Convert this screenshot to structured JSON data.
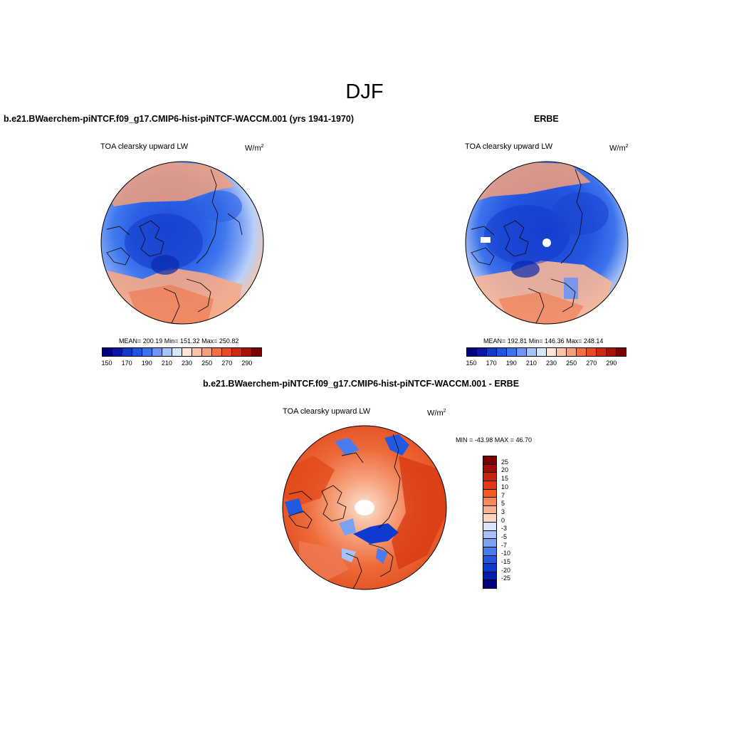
{
  "figure": {
    "title": "DJF"
  },
  "panels": [
    {
      "title": "b.e21.BWaerchem-piNTCF.f09_g17.CMIP6-hist-piNTCF-WACCM.001 (yrs 1941-1970)",
      "variable": "TOA clearsky upward LW",
      "units_base": "W/m",
      "units_sup": "2",
      "stats": "MEAN= 200.19  Min= 151.32  Max= 250.82"
    },
    {
      "title": "ERBE",
      "variable": "TOA clearsky upward LW",
      "units_base": "W/m",
      "units_sup": "2",
      "stats": "MEAN= 192.81  Min= 146.36  Max= 248.14"
    },
    {
      "title": "b.e21.BWaerchem-piNTCF.f09_g17.CMIP6-hist-piNTCF-WACCM.001 - ERBE",
      "variable": "TOA clearsky upward LW",
      "units_base": "W/m",
      "units_sup": "2",
      "stats": "MIN = -43.98 MAX =  46.70"
    }
  ],
  "colorbars": {
    "absolute": {
      "colors": [
        "#00007f",
        "#0a17a6",
        "#1238c8",
        "#1f55e0",
        "#3a75ef",
        "#6d96f3",
        "#a6c2f8",
        "#d6e6fb",
        "#fde7d9",
        "#f9c4a9",
        "#f5a07c",
        "#f26f46",
        "#e84b1e",
        "#cf2a10",
        "#a81209",
        "#7a0000"
      ],
      "tick_labels": [
        "150",
        "170",
        "190",
        "210",
        "230",
        "250",
        "270",
        "290"
      ]
    },
    "difference": {
      "colors_top_to_bottom": [
        "#7a0000",
        "#a30f06",
        "#c82408",
        "#e3380f",
        "#f25a22",
        "#f6885a",
        "#f9b08e",
        "#fcd6c0",
        "#d6e6fb",
        "#a6c2f8",
        "#7aa2f3",
        "#4b7ced",
        "#2259e2",
        "#0f3ad0",
        "#0420a8",
        "#00007f"
      ],
      "tick_labels": [
        "25",
        "20",
        "15",
        "10",
        "7",
        "5",
        "3",
        "0",
        "-3",
        "-5",
        "-7",
        "-10",
        "-15",
        "-20",
        "-25"
      ]
    }
  },
  "map_data": {
    "projection": "north polar stereographic",
    "season": "DJF",
    "fields": [
      {
        "panel": 0,
        "range": [
          150,
          290
        ],
        "mean": 200.19,
        "min": 151.32,
        "max": 250.82
      },
      {
        "panel": 1,
        "range": [
          150,
          290
        ],
        "mean": 192.81,
        "min": 146.36,
        "max": 248.14
      },
      {
        "panel": 2,
        "range": [
          -25,
          25
        ],
        "min": -43.98,
        "max": 46.7
      }
    ]
  }
}
